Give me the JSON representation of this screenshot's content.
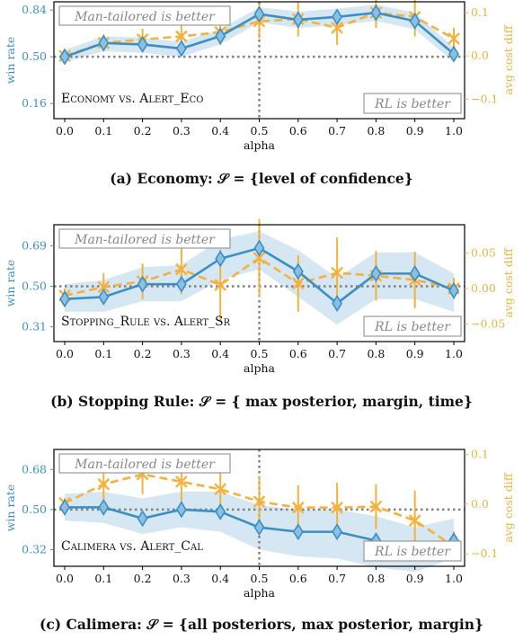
{
  "chart_data": [
    {
      "type": "line",
      "id": "a",
      "caption": "(a) Economy: 𝒮 = {level of confidence}",
      "x": [
        0.0,
        0.1,
        0.2,
        0.3,
        0.4,
        0.5,
        0.6,
        0.7,
        0.8,
        0.9,
        1.0
      ],
      "xlabel": "alpha",
      "ylabel_left": "win rate",
      "ylabel_right": "avg cost diff",
      "left_ticks": [
        "0.16",
        "0.50",
        "0.84"
      ],
      "left_tick_values": [
        0.16,
        0.5,
        0.84
      ],
      "right_ticks": [
        "−0.1",
        "0.0",
        "0.1"
      ],
      "right_tick_values": [
        -0.1,
        0.0,
        0.1
      ],
      "ylim_left": [
        0.05,
        0.9
      ],
      "ylim_right": [
        -0.145,
        0.125
      ],
      "win_rate": [
        0.5,
        0.6,
        0.59,
        0.56,
        0.65,
        0.81,
        0.77,
        0.79,
        0.82,
        0.76,
        0.52
      ],
      "win_band_low": [
        0.46,
        0.54,
        0.53,
        0.5,
        0.59,
        0.75,
        0.71,
        0.73,
        0.76,
        0.7,
        0.46
      ],
      "win_band_high": [
        0.55,
        0.65,
        0.64,
        0.61,
        0.7,
        0.86,
        0.83,
        0.85,
        0.88,
        0.82,
        0.57
      ],
      "cost_diff": [
        0.0,
        0.03,
        0.038,
        0.045,
        0.055,
        0.08,
        0.085,
        0.065,
        0.1,
        0.09,
        0.04
      ],
      "cost_err": [
        0.01,
        0.02,
        0.025,
        0.035,
        0.03,
        0.04,
        0.04,
        0.04,
        0.035,
        0.045,
        0.025
      ],
      "annot_top": "Man-tailored is better",
      "annot_bottom": "RL is better",
      "inset": "Economy vs. Alert_Eco"
    },
    {
      "type": "line",
      "id": "b",
      "caption": "(b) Stopping Rule: 𝒮 = { max posterior, margin, time}",
      "x": [
        0.0,
        0.1,
        0.2,
        0.3,
        0.4,
        0.5,
        0.6,
        0.7,
        0.8,
        0.9,
        1.0
      ],
      "xlabel": "alpha",
      "ylabel_left": "win rate",
      "ylabel_right": "avg cost diff",
      "left_ticks": [
        "0.31",
        "0.50",
        "0.69"
      ],
      "left_tick_values": [
        0.31,
        0.5,
        0.69
      ],
      "right_ticks": [
        "−0.05",
        "0.00",
        "0.05"
      ],
      "right_tick_values": [
        -0.05,
        0.0,
        0.05
      ],
      "ylim_left": [
        0.24,
        0.79
      ],
      "ylim_right": [
        -0.075,
        0.09
      ],
      "win_rate": [
        0.44,
        0.45,
        0.51,
        0.51,
        0.63,
        0.68,
        0.57,
        0.42,
        0.56,
        0.56,
        0.48
      ],
      "win_band_low": [
        0.38,
        0.38,
        0.43,
        0.43,
        0.53,
        0.58,
        0.45,
        0.32,
        0.44,
        0.44,
        0.38
      ],
      "win_band_high": [
        0.51,
        0.53,
        0.59,
        0.6,
        0.72,
        0.76,
        0.67,
        0.54,
        0.66,
        0.66,
        0.56
      ],
      "cost_diff": [
        -0.01,
        0.002,
        0.01,
        0.027,
        0.005,
        0.043,
        0.007,
        0.022,
        0.018,
        0.012,
        0.0
      ],
      "cost_err": [
        0.01,
        0.02,
        0.025,
        0.035,
        0.05,
        0.055,
        0.04,
        0.05,
        0.035,
        0.04,
        0.015
      ],
      "annot_top": "Man-tailored is better",
      "annot_bottom": "RL is better",
      "inset": "Stopping_Rule vs. Alert_Sr"
    },
    {
      "type": "line",
      "id": "c",
      "caption": "(c) Calimera: 𝒮 = {all posteriors, max posterior, margin}",
      "x": [
        0.0,
        0.1,
        0.2,
        0.3,
        0.4,
        0.5,
        0.6,
        0.7,
        0.8,
        0.9,
        1.0
      ],
      "xlabel": "alpha",
      "ylabel_left": "win rate",
      "ylabel_right": "avg cost diff",
      "left_ticks": [
        "0.32",
        "0.50",
        "0.68"
      ],
      "left_tick_values": [
        0.32,
        0.5,
        0.68
      ],
      "right_ticks": [
        "−0.1",
        "0.0",
        "0.1"
      ],
      "right_tick_values": [
        -0.1,
        0.0,
        0.1
      ],
      "ylim_left": [
        0.245,
        0.77
      ],
      "ylim_right": [
        -0.125,
        0.11
      ],
      "win_rate": [
        0.51,
        0.51,
        0.46,
        0.5,
        0.49,
        0.42,
        0.4,
        0.4,
        0.36,
        0.32,
        0.36
      ],
      "win_band_low": [
        0.45,
        0.44,
        0.39,
        0.42,
        0.4,
        0.32,
        0.29,
        0.28,
        0.24,
        0.22,
        0.28
      ],
      "win_band_high": [
        0.57,
        0.58,
        0.55,
        0.58,
        0.58,
        0.52,
        0.5,
        0.5,
        0.47,
        0.42,
        0.46
      ],
      "cost_diff": [
        0.002,
        0.04,
        0.06,
        0.045,
        0.03,
        0.005,
        -0.007,
        -0.007,
        -0.005,
        -0.033,
        -0.085
      ],
      "cost_err": [
        0.01,
        0.03,
        0.04,
        0.045,
        0.04,
        0.05,
        0.045,
        0.05,
        0.045,
        0.06,
        0.03
      ],
      "annot_top": "Man-tailored is better",
      "annot_bottom": "RL is better",
      "inset": "Calimera vs. Alert_Cal"
    }
  ],
  "colors": {
    "win_line": "#3b8fc4",
    "win_band": "#d6e7f4",
    "cost_line": "#f4b23c",
    "axis_left": "#3b8fc4",
    "axis_right": "#e8b33c",
    "ref_line": "#808080"
  }
}
